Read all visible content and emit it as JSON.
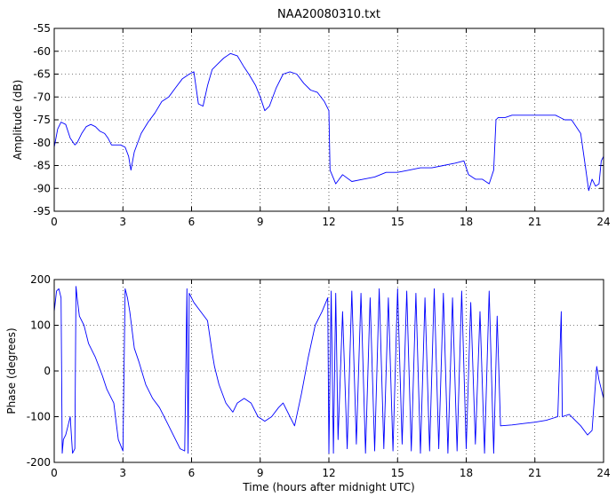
{
  "figure": {
    "title": "NAA20080310.txt"
  },
  "chart_data": [
    {
      "type": "line",
      "title": "NAA20080310.txt",
      "xlabel": "",
      "ylabel": "Amplitude (dB)",
      "xlim": [
        0,
        24
      ],
      "ylim": [
        -95,
        -55
      ],
      "xticks": [
        0,
        3,
        6,
        9,
        12,
        15,
        18,
        21,
        24
      ],
      "yticks": [
        -95,
        -90,
        -85,
        -80,
        -75,
        -70,
        -65,
        -60,
        -55
      ],
      "grid": true,
      "color": "#0000ff",
      "series": [
        {
          "x": [
            0,
            0.15,
            0.3,
            0.5,
            0.7,
            0.9,
            1.0,
            1.2,
            1.4,
            1.6,
            1.8,
            2.0,
            2.2,
            2.35,
            2.5,
            2.7,
            2.9,
            3.1,
            3.25,
            3.35,
            3.5,
            3.8,
            4.1,
            4.4,
            4.7,
            5.0,
            5.3,
            5.6,
            5.9,
            6.1,
            6.3,
            6.5,
            6.7,
            6.9,
            7.1,
            7.4,
            7.7,
            8.0,
            8.3,
            8.5,
            8.8,
            9.0,
            9.2,
            9.4,
            9.7,
            10.0,
            10.3,
            10.6,
            10.9,
            11.2,
            11.5,
            11.8,
            12.0,
            12.05,
            12.3,
            12.6,
            13.0,
            13.5,
            14.0,
            14.5,
            15.0,
            15.5,
            16.0,
            16.5,
            17.0,
            17.5,
            17.9,
            18.1,
            18.4,
            18.7,
            19.0,
            19.2,
            19.3,
            19.4,
            19.7,
            20.0,
            20.5,
            21.0,
            21.5,
            21.9,
            22.1,
            22.3,
            22.6,
            23.0,
            23.2,
            23.35,
            23.5,
            23.65,
            23.8,
            23.9,
            24.0
          ],
          "values": [
            -81,
            -77,
            -75.5,
            -76,
            -79,
            -80.5,
            -80,
            -78,
            -76.5,
            -76,
            -76.5,
            -77.5,
            -78,
            -79,
            -80.5,
            -80.5,
            -80.5,
            -81,
            -83,
            -86,
            -82,
            -78,
            -75.5,
            -73.5,
            -71,
            -70,
            -68,
            -66,
            -65,
            -64.5,
            -71.5,
            -72,
            -67.5,
            -64,
            -63,
            -61.5,
            -60.5,
            -61,
            -63.5,
            -65,
            -67.5,
            -70,
            -73,
            -72,
            -68,
            -65,
            -64.5,
            -65,
            -67,
            -68.5,
            -69,
            -71,
            -73,
            -86,
            -89,
            -87,
            -88.5,
            -88,
            -87.5,
            -86.5,
            -86.5,
            -86,
            -85.5,
            -85.5,
            -85,
            -84.5,
            -84,
            -87,
            -88,
            -88,
            -89,
            -86,
            -75,
            -74.5,
            -74.5,
            -74,
            -74,
            -74,
            -74,
            -74,
            -74.5,
            -75,
            -75,
            -78,
            -85,
            -90.5,
            -88,
            -89.5,
            -89,
            -84,
            -83
          ]
        }
      ]
    },
    {
      "type": "line",
      "title": "",
      "xlabel": "Time (hours after midnight UTC)",
      "ylabel": "Phase (degrees)",
      "xlim": [
        0,
        24
      ],
      "ylim": [
        -200,
        200
      ],
      "xticks": [
        0,
        3,
        6,
        9,
        12,
        15,
        18,
        21,
        24
      ],
      "yticks": [
        -200,
        -100,
        0,
        100,
        200
      ],
      "grid": true,
      "color": "#0000ff",
      "series": [
        {
          "x": [
            0,
            0.1,
            0.2,
            0.3,
            0.35,
            0.4,
            0.5,
            0.6,
            0.7,
            0.8,
            0.9,
            0.95,
            1.0,
            1.1,
            1.3,
            1.5,
            1.8,
            2.1,
            2.3,
            2.6,
            2.8,
            3.0,
            3.1,
            3.2,
            3.3,
            3.5,
            3.7,
            4.0,
            4.3,
            4.6,
            4.9,
            5.2,
            5.5,
            5.7,
            5.8,
            5.85,
            5.9,
            6.1,
            6.4,
            6.7,
            6.9,
            7.0,
            7.2,
            7.5,
            7.8,
            8.0,
            8.3,
            8.6,
            8.9,
            9.2,
            9.5,
            9.8,
            10.0,
            10.3,
            10.5,
            10.8,
            11.1,
            11.4,
            11.7,
            11.95,
            12.0,
            12.1,
            12.2,
            12.3,
            12.4,
            12.6,
            12.8,
            13.0,
            13.2,
            13.4,
            13.6,
            13.8,
            14.0,
            14.2,
            14.4,
            14.6,
            14.8,
            15.0,
            15.2,
            15.4,
            15.6,
            15.8,
            16.0,
            16.2,
            16.4,
            16.6,
            16.8,
            17.0,
            17.2,
            17.4,
            17.6,
            17.8,
            18.0,
            18.2,
            18.4,
            18.6,
            18.8,
            19.0,
            19.2,
            19.35,
            19.5,
            20.0,
            20.5,
            21.0,
            21.5,
            22.0,
            22.15,
            22.2,
            22.5,
            23.0,
            23.3,
            23.5,
            23.7,
            23.8,
            24.0
          ],
          "values": [
            130,
            175,
            180,
            160,
            -180,
            -150,
            -140,
            -120,
            -100,
            -180,
            -170,
            185,
            160,
            120,
            100,
            60,
            30,
            -10,
            -40,
            -70,
            -150,
            -175,
            180,
            160,
            130,
            50,
            20,
            -30,
            -60,
            -80,
            -110,
            -140,
            -170,
            -175,
            180,
            -180,
            170,
            150,
            130,
            110,
            40,
            10,
            -30,
            -70,
            -90,
            -70,
            -60,
            -70,
            -100,
            -110,
            -100,
            -80,
            -70,
            -100,
            -120,
            -50,
            30,
            100,
            130,
            160,
            -180,
            175,
            -180,
            170,
            -150,
            130,
            -170,
            175,
            -160,
            170,
            -180,
            160,
            -175,
            180,
            -170,
            160,
            -175,
            180,
            -160,
            175,
            -175,
            170,
            -180,
            160,
            -175,
            180,
            -170,
            170,
            -180,
            160,
            -175,
            175,
            -170,
            150,
            -160,
            130,
            -180,
            175,
            -180,
            120,
            -120,
            -118,
            -115,
            -112,
            -108,
            -100,
            130,
            -100,
            -95,
            -120,
            -140,
            -130,
            10,
            -20,
            -60
          ]
        }
      ]
    }
  ]
}
